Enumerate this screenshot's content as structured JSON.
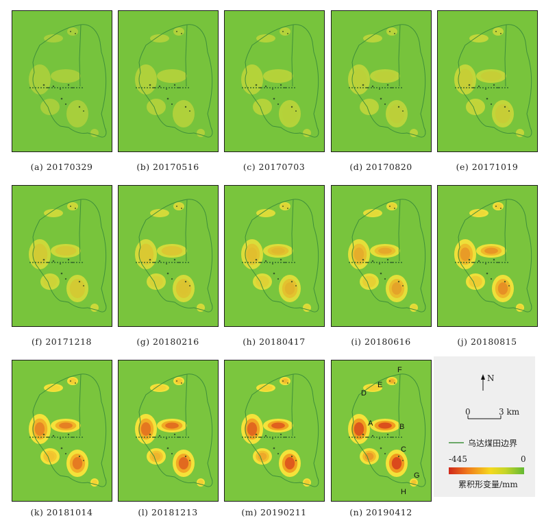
{
  "panels": [
    {
      "label": "(a) 20170329",
      "level": 0.04
    },
    {
      "label": "(b) 20170516",
      "level": 0.1
    },
    {
      "label": "(c) 20170703",
      "level": 0.14
    },
    {
      "label": "(d) 20170820",
      "level": 0.18
    },
    {
      "label": "(e) 20171019",
      "level": 0.24
    },
    {
      "label": "(f) 20171218",
      "level": 0.32
    },
    {
      "label": "(g) 20180216",
      "level": 0.38
    },
    {
      "label": "(h) 20180417",
      "level": 0.45
    },
    {
      "label": "(i) 20180616",
      "level": 0.52
    },
    {
      "label": "(j) 20180815",
      "level": 0.6
    },
    {
      "label": "(k) 20181014",
      "level": 0.7
    },
    {
      "label": "(l) 20181213",
      "level": 0.78
    },
    {
      "label": "(m) 20190211",
      "level": 0.86
    },
    {
      "label": "(n) 20190412",
      "level": 0.96
    }
  ],
  "zone_labels": [
    "A",
    "B",
    "C",
    "D",
    "E",
    "F",
    "G",
    "H"
  ],
  "legend": {
    "north": "N",
    "scale_zero": "0",
    "scale_end": "3 km",
    "boundary_label": "乌达煤田边界",
    "cmap_min": "-445",
    "cmap_max": "0",
    "cmap_title": "累积形变量/mm"
  },
  "colors": {
    "background": "#6fbf3a",
    "boundary": "#3f8f3a",
    "max_subsidence": "#d0281b"
  }
}
